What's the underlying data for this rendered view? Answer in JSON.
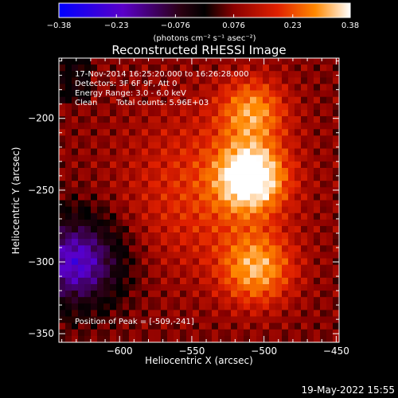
{
  "chart_data": {
    "type": "heatmap",
    "title": "Reconstructed RHESSI Image",
    "xlabel": "Heliocentric X (arcsec)",
    "ylabel": "Heliocentric Y (arcsec)",
    "xlim": [
      -642,
      -448
    ],
    "ylim": [
      -356,
      -158
    ],
    "xticks": [
      -600,
      -550,
      -500,
      -450
    ],
    "xtick_labels": [
      "−600",
      "−550",
      "−500",
      "−450"
    ],
    "yticks": [
      -200,
      -250,
      -300,
      -350
    ],
    "ytick_labels": [
      "−200",
      "−250",
      "−300",
      "−350"
    ],
    "colorbar": {
      "range": [
        -0.38,
        0.38
      ],
      "ticks": [
        -0.38,
        -0.23,
        -0.076,
        0.076,
        0.23,
        0.38
      ],
      "tick_labels": [
        "−0.38",
        "−0.23",
        "−0.076",
        "0.076",
        "0.23",
        "0.38"
      ],
      "unit_label": "(photons cm⁻² s⁻¹ asec⁻²)"
    },
    "annotations": {
      "time_range": "17-Nov-2014 16:25:20.000 to 16:26:28.000",
      "detectors": "Detectors: 3F 6F 9F, Att 0",
      "energy_range": "Energy Range: 3.0 - 6.0 keV",
      "method": "Clean",
      "total_counts": "Total counts: 5.96E+03",
      "peak_position": "Position of Peak = [-509,-241]"
    },
    "peak": [
      -509,
      -241
    ],
    "footer_date": "19-May-2022 15:55"
  }
}
